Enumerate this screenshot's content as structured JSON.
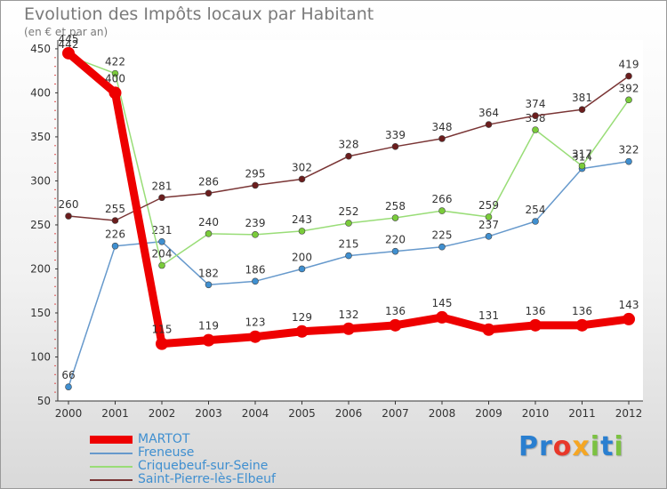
{
  "header": {
    "title": "Evolution des Impôts locaux par Habitant",
    "subtitle": "(en € et par an)"
  },
  "logo": {
    "text": "Proxiti",
    "letters": [
      {
        "ch": "P",
        "color": "#2a7fd0"
      },
      {
        "ch": "r",
        "color": "#2a7fd0"
      },
      {
        "ch": "o",
        "color": "#e8382a"
      },
      {
        "ch": "x",
        "color": "#f5a623"
      },
      {
        "ch": "i",
        "color": "#7cc242"
      },
      {
        "ch": "t",
        "color": "#2a7fd0"
      },
      {
        "ch": "i",
        "color": "#7cc242"
      }
    ]
  },
  "chart_data": {
    "type": "line",
    "title": "Evolution des Impôts locaux par Habitant",
    "subtitle": "(en € et par an)",
    "xlabel": "",
    "ylabel": "",
    "x": [
      "2000",
      "2001",
      "2002",
      "2003",
      "2004",
      "2005",
      "2006",
      "2007",
      "2008",
      "2009",
      "2010",
      "2011",
      "2012"
    ],
    "ylim": [
      50,
      460
    ],
    "yticks": [
      50,
      100,
      150,
      200,
      250,
      300,
      350,
      400,
      450
    ],
    "grid": false,
    "legend_position": "bottom-left",
    "series": [
      {
        "name": "MARTOT",
        "color": "#ee0000",
        "emphasis": true,
        "values": [
          445,
          400,
          115,
          119,
          123,
          129,
          132,
          136,
          145,
          131,
          136,
          136,
          143
        ],
        "labels": [
          "445",
          "400",
          "115",
          "119",
          "123",
          "129",
          "132",
          "136",
          "145",
          "131",
          "136",
          "136",
          "143"
        ]
      },
      {
        "name": "Freneuse",
        "color": "#6699cc",
        "point_color": "#3f8fd0",
        "values": [
          66,
          226,
          231,
          182,
          186,
          200,
          215,
          220,
          225,
          237,
          254,
          314,
          322
        ],
        "labels": [
          "66",
          "226",
          "231",
          "182",
          "186",
          "200",
          "215",
          "220",
          "225",
          "237",
          "254",
          "314",
          "322"
        ]
      },
      {
        "name": "Criquebeuf-sur-Seine",
        "color": "#99dd77",
        "point_color": "#7acc3a",
        "values": [
          442,
          422,
          204,
          240,
          239,
          243,
          252,
          258,
          266,
          259,
          358,
          317,
          392
        ],
        "labels": [
          "442",
          "422",
          "204",
          "240",
          "239",
          "243",
          "252",
          "258",
          "266",
          "259",
          "358",
          "317",
          "392"
        ]
      },
      {
        "name": "Saint-Pierre-lès-Elbeuf",
        "color": "#7a3535",
        "point_color": "#6b1d1d",
        "values": [
          260,
          255,
          281,
          286,
          295,
          302,
          328,
          339,
          348,
          364,
          374,
          381,
          419
        ],
        "labels": [
          "260",
          "255",
          "281",
          "286",
          "295",
          "302",
          "328",
          "339",
          "348",
          "364",
          "374",
          "381",
          "419"
        ]
      }
    ]
  }
}
